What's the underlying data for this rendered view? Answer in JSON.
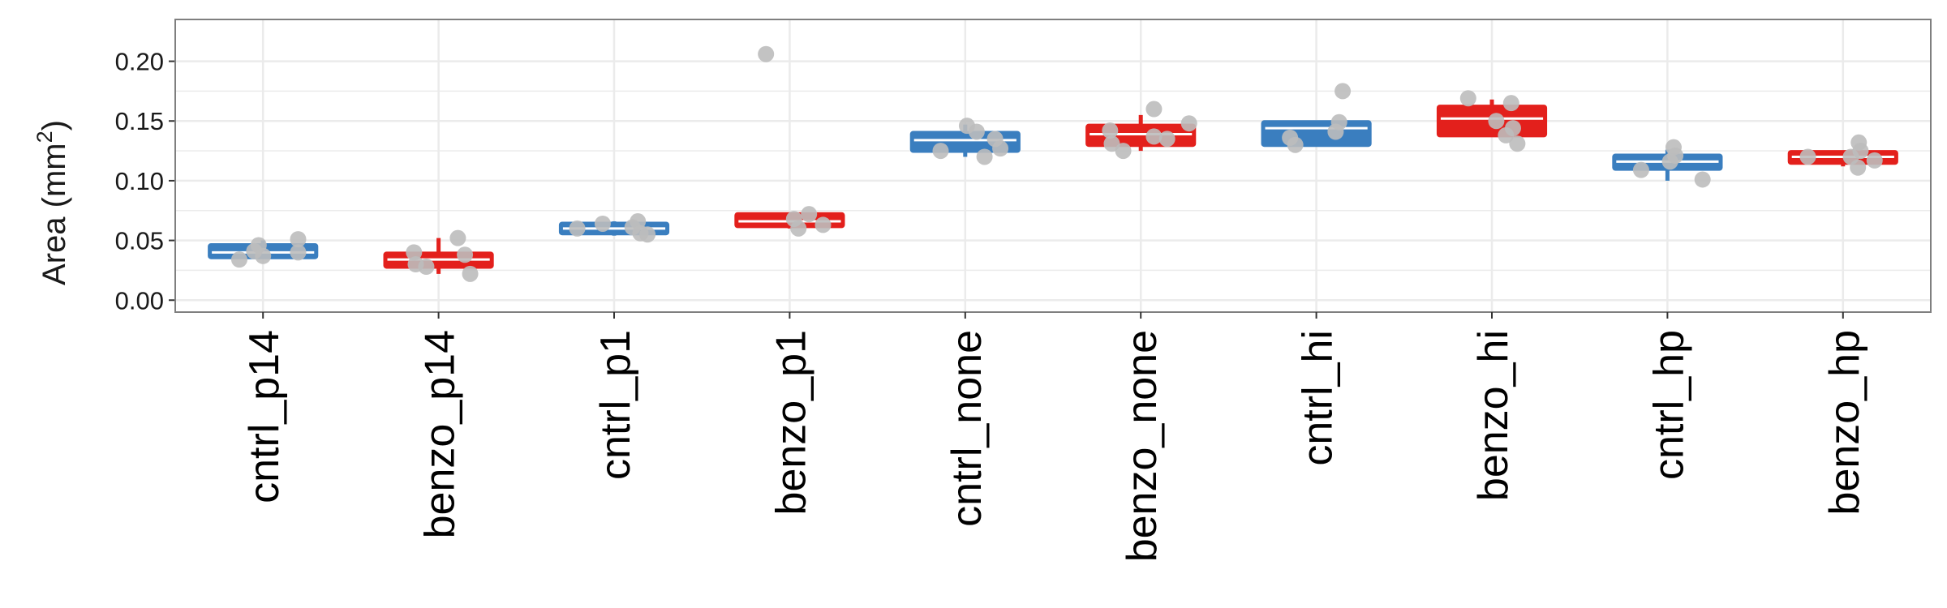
{
  "chart_data": {
    "type": "boxplot",
    "title": "",
    "xlabel": "",
    "ylabel": "Area (mm",
    "ylabel_superscript": "2",
    "ylabel_suffix": ")",
    "ylim": [
      -0.01,
      0.235
    ],
    "yticks": [
      0.0,
      0.05,
      0.1,
      0.15,
      0.2
    ],
    "ytick_labels": [
      "0.00",
      "0.05",
      "0.10",
      "0.15",
      "0.20"
    ],
    "grid": true,
    "legend": "none",
    "colors": {
      "cntrl": "#3a7ebf",
      "benzo": "#e3201c",
      "points": "#bdbdbd",
      "panel_border": "#7f7f7f",
      "grid": "#ebebeb"
    },
    "categories": [
      "cntrl_p14",
      "benzo_p14",
      "cntrl_p1",
      "benzo_p1",
      "cntrl_none",
      "benzo_none",
      "cntrl_hi",
      "benzo_hi",
      "cntrl_hp",
      "benzo_hp"
    ],
    "groups": [
      "cntrl",
      "benzo",
      "cntrl",
      "benzo",
      "cntrl",
      "benzo",
      "cntrl",
      "benzo",
      "cntrl",
      "benzo"
    ],
    "boxes": [
      {
        "min": 0.035,
        "q1": 0.035,
        "median": 0.04,
        "q3": 0.047,
        "max": 0.05
      },
      {
        "min": 0.022,
        "q1": 0.027,
        "median": 0.034,
        "q3": 0.04,
        "max": 0.052
      },
      {
        "min": 0.054,
        "q1": 0.055,
        "median": 0.06,
        "q3": 0.065,
        "max": 0.066
      },
      {
        "min": 0.06,
        "q1": 0.061,
        "median": 0.066,
        "q3": 0.073,
        "max": 0.073
      },
      {
        "min": 0.12,
        "q1": 0.124,
        "median": 0.134,
        "q3": 0.141,
        "max": 0.147
      },
      {
        "min": 0.125,
        "q1": 0.129,
        "median": 0.139,
        "q3": 0.147,
        "max": 0.155
      },
      {
        "min": 0.129,
        "q1": 0.129,
        "median": 0.144,
        "q3": 0.15,
        "max": 0.15
      },
      {
        "min": 0.137,
        "q1": 0.137,
        "median": 0.152,
        "q3": 0.163,
        "max": 0.168
      },
      {
        "min": 0.1,
        "q1": 0.109,
        "median": 0.116,
        "q3": 0.122,
        "max": 0.126
      },
      {
        "min": 0.112,
        "q1": 0.114,
        "median": 0.12,
        "q3": 0.125,
        "max": 0.125
      }
    ],
    "points": [
      [
        0.034,
        0.041,
        0.046,
        0.037,
        0.051,
        0.04
      ],
      [
        0.04,
        0.03,
        0.028,
        0.052,
        0.038,
        0.022
      ],
      [
        0.06,
        0.064,
        0.066,
        0.061,
        0.056,
        0.055
      ],
      [
        0.206,
        0.068,
        0.06,
        0.072,
        0.063
      ],
      [
        0.125,
        0.146,
        0.141,
        0.12,
        0.135,
        0.127
      ],
      [
        0.142,
        0.131,
        0.125,
        0.16,
        0.137,
        0.135,
        0.148
      ],
      [
        0.136,
        0.13,
        0.141,
        0.149,
        0.175
      ],
      [
        0.169,
        0.15,
        0.138,
        0.165,
        0.144,
        0.131
      ],
      [
        0.109,
        0.116,
        0.128,
        0.121,
        0.101
      ],
      [
        0.12,
        0.12,
        0.111,
        0.132,
        0.125,
        0.117
      ]
    ],
    "jitter": [
      [
        -0.27,
        -0.1,
        -0.05,
        0.0,
        0.4,
        0.4
      ],
      [
        -0.28,
        -0.26,
        -0.14,
        0.22,
        0.3,
        0.36
      ],
      [
        -0.42,
        -0.13,
        0.27,
        0.21,
        0.3,
        0.38
      ],
      [
        -0.27,
        0.05,
        0.1,
        0.22,
        0.38
      ],
      [
        -0.28,
        0.02,
        0.13,
        0.22,
        0.34,
        0.4
      ],
      [
        -0.35,
        -0.33,
        -0.2,
        0.15,
        0.15,
        0.3,
        0.55
      ],
      [
        -0.3,
        -0.24,
        0.22,
        0.26,
        0.3
      ],
      [
        -0.27,
        0.05,
        0.16,
        0.22,
        0.24,
        0.29
      ],
      [
        -0.3,
        0.03,
        0.07,
        0.09,
        0.4
      ],
      [
        -0.4,
        0.09,
        0.17,
        0.18,
        0.2,
        0.36
      ]
    ]
  }
}
